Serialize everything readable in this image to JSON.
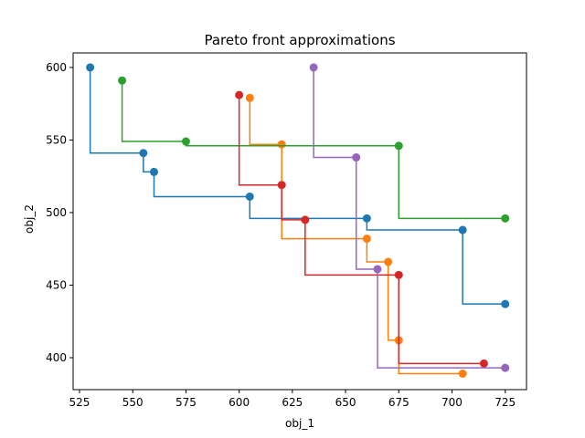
{
  "chart_data": {
    "type": "line",
    "title": "Pareto front approximations",
    "xlabel": "obj_1",
    "ylabel": "obj_2",
    "xlim": [
      522,
      735
    ],
    "ylim": [
      378,
      610
    ],
    "xticks": [
      525,
      550,
      575,
      600,
      625,
      650,
      675,
      700,
      725
    ],
    "yticks": [
      400,
      450,
      500,
      550,
      600
    ],
    "grid": false,
    "legend": "none",
    "step": "post",
    "series": [
      {
        "color": "#1f77b4",
        "points": [
          [
            530,
            600
          ],
          [
            555,
            541
          ],
          [
            560,
            528
          ],
          [
            605,
            511
          ],
          [
            660,
            496
          ],
          [
            705,
            488
          ],
          [
            725,
            437
          ]
        ]
      },
      {
        "color": "#ff7f0e",
        "points": [
          [
            605,
            579
          ],
          [
            620,
            547
          ],
          [
            660,
            482
          ],
          [
            670,
            466
          ],
          [
            675,
            412
          ],
          [
            705,
            389
          ]
        ]
      },
      {
        "color": "#2ca02c",
        "points": [
          [
            545,
            591
          ],
          [
            575,
            549
          ],
          [
            675,
            546
          ],
          [
            725,
            496
          ]
        ]
      },
      {
        "color": "#d62728",
        "points": [
          [
            600,
            581
          ],
          [
            620,
            519
          ],
          [
            631,
            495
          ],
          [
            675,
            457
          ],
          [
            715,
            396
          ]
        ]
      },
      {
        "color": "#9467bd",
        "points": [
          [
            635,
            600
          ],
          [
            655,
            538
          ],
          [
            665,
            461
          ],
          [
            725,
            393
          ]
        ]
      }
    ]
  }
}
